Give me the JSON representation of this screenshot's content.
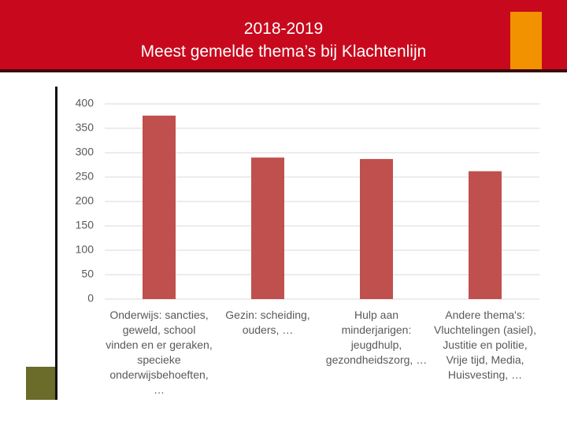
{
  "chart_data": {
    "type": "bar",
    "title": "2018-2019\nMeest gemelde thema’s bij Klachtenlijn",
    "categories": [
      "Onderwijs: sancties, geweld, school vinden en er geraken, specieke onderwijsbehoeften, …",
      "Gezin: scheiding, ouders, …",
      "Hulp aan minderjarigen: jeugdhulp, gezondheidszorg, …",
      "Andere thema's: Vluchtelingen (asiel), Justitie en politie, Vrije tijd, Media, Huisvesting, …"
    ],
    "values": [
      376,
      290,
      287,
      262
    ],
    "color": "#c0504d",
    "ylim": [
      0,
      400
    ],
    "yticks": [
      0,
      50,
      100,
      150,
      200,
      250,
      300,
      350,
      400
    ],
    "grid": true
  }
}
